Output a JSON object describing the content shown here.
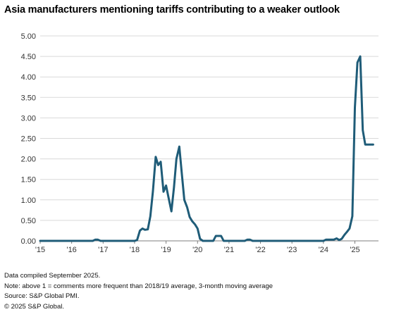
{
  "title": "Asia manufacturers mentioning tariffs contributing to a weaker outlook",
  "notes": [
    "Data compiled September 2025.",
    "Note: above 1 = comments more frequent than 2018/19 average, 3-month moving average",
    "Source: S&P Global PMI.",
    "© 2025 S&P Global."
  ],
  "colors": {
    "line": "#1f5c78",
    "grid": "#d9d9d9",
    "axis": "#7f7f7f"
  },
  "chart_data": {
    "type": "line",
    "title": "Asia manufacturers mentioning tariffs contributing to a weaker outlook",
    "xlabel": "",
    "ylabel": "",
    "ylim": [
      0,
      5
    ],
    "y_ticks": [
      "0.00",
      "0.50",
      "1.00",
      "1.50",
      "2.00",
      "2.50",
      "3.00",
      "3.50",
      "4.00",
      "4.50",
      "5.00"
    ],
    "x_ticks": [
      "'15",
      "'16",
      "'17",
      "'18",
      "'19",
      "'20",
      "'21",
      "'22",
      "'23",
      "'24",
      "'25"
    ],
    "x_tick_years": [
      2015,
      2016,
      2017,
      2018,
      2019,
      2020,
      2021,
      2022,
      2023,
      2024,
      2025
    ],
    "xlim": [
      2015.0,
      2025.75
    ],
    "grid": true,
    "series": [
      {
        "x": [
          2015.0,
          2016.67,
          2016.75,
          2016.83,
          2016.92,
          2017.0,
          2018.0,
          2018.08,
          2018.17,
          2018.25,
          2018.33,
          2018.42,
          2018.5,
          2018.58,
          2018.67,
          2018.75,
          2018.83,
          2018.92,
          2019.0,
          2019.08,
          2019.17,
          2019.25,
          2019.33,
          2019.42,
          2019.5,
          2019.58,
          2019.67,
          2019.75,
          2019.83,
          2019.92,
          2020.0,
          2020.08,
          2020.17,
          2020.25,
          2020.5,
          2020.58,
          2020.67,
          2020.75,
          2020.83,
          2021.5,
          2021.58,
          2021.67,
          2021.75,
          2024.0,
          2024.08,
          2024.17,
          2024.25,
          2024.33,
          2024.42,
          2024.5,
          2024.58,
          2024.67,
          2024.75,
          2024.83,
          2024.92,
          2025.0,
          2025.08,
          2025.17,
          2025.25,
          2025.33,
          2025.42,
          2025.5,
          2025.58
        ],
        "values": [
          0,
          0,
          0.03,
          0.03,
          0,
          0,
          0,
          0.02,
          0.25,
          0.3,
          0.27,
          0.28,
          0.6,
          1.2,
          2.05,
          1.85,
          1.93,
          1.2,
          1.35,
          1.05,
          0.72,
          1.3,
          2.0,
          2.3,
          1.65,
          1.0,
          0.82,
          0.58,
          0.48,
          0.4,
          0.3,
          0.05,
          0,
          0,
          0,
          0.12,
          0.12,
          0.12,
          0,
          0,
          0.03,
          0.03,
          0,
          0,
          0.03,
          0.03,
          0.03,
          0.03,
          0.06,
          0.02,
          0.05,
          0.15,
          0.22,
          0.3,
          0.6,
          3.25,
          4.35,
          4.5,
          2.7,
          2.35,
          2.35,
          2.35,
          2.35
        ]
      }
    ]
  }
}
